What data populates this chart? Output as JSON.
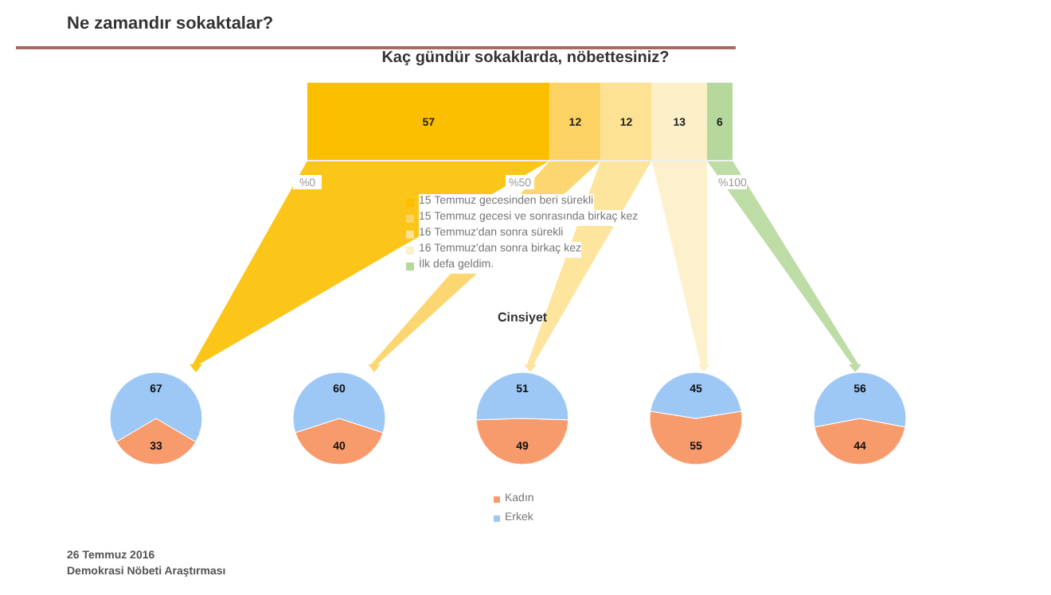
{
  "chart_data": [
    {
      "type": "bar",
      "orientation": "horizontal",
      "stacked": true,
      "title": "Ne zamandır sokaktalar?",
      "subtitle": "Kaç gündür sokaklarda, nöbettesiniz?",
      "categories": [
        null
      ],
      "series": [
        {
          "name": "15 Temmuz gecesinden beri sürekli",
          "color": "#fbbf00",
          "values": [
            57
          ]
        },
        {
          "name": "15 Temmuz gecesi ve sonrasında birkaç kez",
          "color": "#fcd362",
          "values": [
            12
          ]
        },
        {
          "name": "16 Temmuz'dan sonra sürekli",
          "color": "#fde293",
          "values": [
            12
          ]
        },
        {
          "name": "16 Temmuz'dan sonra birkaç kez",
          "color": "#fdf0c8",
          "values": [
            13
          ]
        },
        {
          "name": "İlk defa geldim.",
          "color": "#b6d89c",
          "values": [
            6
          ]
        }
      ],
      "xlim": [
        0,
        100
      ],
      "xticks": [
        {
          "value": 0,
          "label": "%0"
        },
        {
          "value": 50,
          "label": "%50"
        },
        {
          "value": 100,
          "label": "%100"
        }
      ],
      "tick_labels": "x",
      "data_labels": true,
      "legend": "bottom",
      "annotations": [
        "26 Temmuz 2016",
        "Demokrasi Nöbeti Araştırması"
      ]
    },
    {
      "type": "pie",
      "categories": [
        null,
        null
      ],
      "values": [
        33,
        67
      ],
      "colors": [
        "#f89b6c",
        "#9dc8f6"
      ],
      "data_labels": true
    },
    {
      "type": "pie",
      "categories": [
        null,
        null
      ],
      "values": [
        40,
        60
      ],
      "colors": [
        "#f89b6c",
        "#9dc8f6"
      ],
      "data_labels": true
    },
    {
      "type": "pie",
      "title": "Cinsiyet",
      "categories": [
        "Kadın",
        "Erkek"
      ],
      "values": [
        49,
        51
      ],
      "colors": [
        "#f89b6c",
        "#9dc8f6"
      ],
      "data_labels": true,
      "legend": "bottom"
    },
    {
      "type": "pie",
      "categories": [
        null,
        null
      ],
      "values": [
        55,
        45
      ],
      "colors": [
        "#f89b6c",
        "#9dc8f6"
      ],
      "data_labels": true
    },
    {
      "type": "pie",
      "categories": [
        null,
        null
      ],
      "values": [
        44,
        56
      ],
      "colors": [
        "#f89b6c",
        "#9dc8f6"
      ],
      "data_labels": true
    }
  ]
}
